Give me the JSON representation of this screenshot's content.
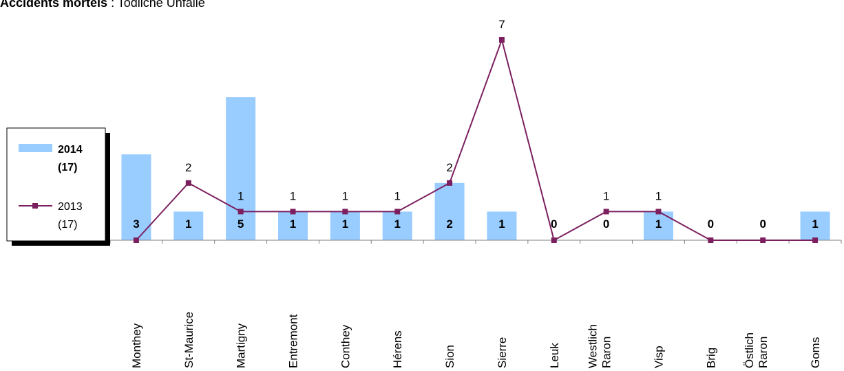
{
  "title": {
    "bold": "Accidents mortels",
    "normal": " : Todliche Unfälle"
  },
  "chart_data": {
    "type": "bar",
    "categories": [
      "Monthey",
      "St-Maurice",
      "Martigny",
      "Entremont",
      "Conthey",
      "Hérens",
      "Sion",
      "Sierre",
      "Leuk",
      "Westlich Raron",
      "Visp",
      "Brig",
      "Östlich Raron",
      "Goms"
    ],
    "series": [
      {
        "name": "2014 (17)",
        "type": "bar",
        "color": "#99ccff",
        "values": [
          3,
          1,
          5,
          1,
          1,
          1,
          2,
          1,
          0,
          0,
          1,
          0,
          0,
          1
        ]
      },
      {
        "name": "2013 (17)",
        "type": "line",
        "color": "#7b1f5e",
        "values": [
          0,
          2,
          1,
          1,
          1,
          1,
          2,
          7,
          0,
          1,
          1,
          0,
          0,
          0
        ]
      }
    ],
    "ylim": [
      0,
      7
    ],
    "grid": false,
    "legend": "left"
  },
  "legend": {
    "item1_line1": "2014",
    "item1_line2": "(17)",
    "item2_line1": "2013",
    "item2_line2": "(17)"
  }
}
